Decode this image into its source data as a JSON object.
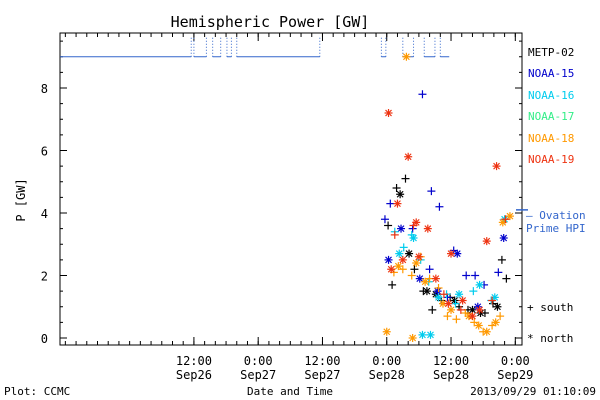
{
  "chart_data": {
    "type": "scatter",
    "title": "Hemispheric Power [GW]",
    "ylabel": "P [GW]",
    "xlabel": "Date and Time",
    "ylim": [
      0,
      9.8
    ],
    "yticks": [
      0,
      2,
      4,
      6,
      8
    ],
    "xlim": [
      "2013-09-25 11:00",
      "2013-09-29 01:15"
    ],
    "xticks": [
      {
        "time": "2013-09-26 12:00",
        "line1": "12:00",
        "line2": "Sep26"
      },
      {
        "time": "2013-09-27 00:00",
        "line1": "0:00",
        "line2": "Sep27"
      },
      {
        "time": "2013-09-27 12:00",
        "line1": "12:00",
        "line2": "Sep27"
      },
      {
        "time": "2013-09-28 00:00",
        "line1": "0:00",
        "line2": "Sep28"
      },
      {
        "time": "2013-09-28 12:00",
        "line1": "12:00",
        "line2": "Sep28"
      },
      {
        "time": "2013-09-29 00:00",
        "line1": "0:00",
        "line2": "Sep29"
      }
    ],
    "legend_position": "right",
    "colors": {
      "METP-02": "#000000",
      "NOAA-15": "#0000cc",
      "NOAA-16": "#00ccee",
      "NOAA-17": "#33ee88",
      "NOAA-18": "#ff9900",
      "NOAA-19": "#ee3311",
      "ovation": "#3366cc"
    },
    "series": [
      {
        "name": "METP-02",
        "points": [
          {
            "t": "2013-09-28 00:15",
            "p": 3.6,
            "m": "+"
          },
          {
            "t": "2013-09-28 01:50",
            "p": 4.8,
            "m": "+"
          },
          {
            "t": "2013-09-28 03:30",
            "p": 5.1,
            "m": "+"
          },
          {
            "t": "2013-09-28 01:00",
            "p": 1.7,
            "m": "+"
          },
          {
            "t": "2013-09-28 05:10",
            "p": 2.2,
            "m": "+"
          },
          {
            "t": "2013-09-28 06:50",
            "p": 1.5,
            "m": "+"
          },
          {
            "t": "2013-09-28 08:30",
            "p": 0.9,
            "m": "+"
          },
          {
            "t": "2013-09-28 10:10",
            "p": 1.2,
            "m": "+"
          },
          {
            "t": "2013-09-28 11:50",
            "p": 1.3,
            "m": "+"
          },
          {
            "t": "2013-09-28 13:30",
            "p": 1.0,
            "m": "+"
          },
          {
            "t": "2013-09-28 15:10",
            "p": 0.9,
            "m": "+"
          },
          {
            "t": "2013-09-28 18:20",
            "p": 0.8,
            "m": "+"
          },
          {
            "t": "2013-09-28 19:50",
            "p": 1.1,
            "m": "+"
          },
          {
            "t": "2013-09-28 21:30",
            "p": 2.5,
            "m": "+"
          },
          {
            "t": "2013-09-28 22:20",
            "p": 1.9,
            "m": "+"
          },
          {
            "t": "2013-09-28 02:30",
            "p": 4.6,
            "m": "*"
          },
          {
            "t": "2013-09-28 04:10",
            "p": 2.7,
            "m": "*"
          },
          {
            "t": "2013-09-28 07:30",
            "p": 1.5,
            "m": "*"
          },
          {
            "t": "2013-09-28 09:10",
            "p": 1.4,
            "m": "*"
          },
          {
            "t": "2013-09-28 12:40",
            "p": 1.2,
            "m": "*"
          },
          {
            "t": "2013-09-28 16:00",
            "p": 0.9,
            "m": "*"
          },
          {
            "t": "2013-09-28 17:30",
            "p": 0.8,
            "m": "*"
          },
          {
            "t": "2013-09-28 20:40",
            "p": 1.0,
            "m": "*"
          }
        ]
      },
      {
        "name": "NOAA-15",
        "points": [
          {
            "t": "2013-09-27 23:40",
            "p": 3.8,
            "m": "+"
          },
          {
            "t": "2013-09-28 00:40",
            "p": 4.3,
            "m": "+"
          },
          {
            "t": "2013-09-28 06:40",
            "p": 7.8,
            "m": "+"
          },
          {
            "t": "2013-09-28 08:20",
            "p": 4.7,
            "m": "+"
          },
          {
            "t": "2013-09-28 09:50",
            "p": 4.2,
            "m": "+"
          },
          {
            "t": "2013-09-28 04:50",
            "p": 3.5,
            "m": "+"
          },
          {
            "t": "2013-09-28 08:00",
            "p": 2.2,
            "m": "+"
          },
          {
            "t": "2013-09-28 11:20",
            "p": 1.3,
            "m": "+"
          },
          {
            "t": "2013-09-28 12:30",
            "p": 2.8,
            "m": "+"
          },
          {
            "t": "2013-09-28 14:50",
            "p": 2.0,
            "m": "+"
          },
          {
            "t": "2013-09-28 16:30",
            "p": 2.0,
            "m": "+"
          },
          {
            "t": "2013-09-28 18:10",
            "p": 1.7,
            "m": "+"
          },
          {
            "t": "2013-09-28 20:50",
            "p": 2.1,
            "m": "+"
          },
          {
            "t": "2013-09-28 21:50",
            "p": 3.2,
            "m": "*"
          },
          {
            "t": "2013-09-28 00:20",
            "p": 2.5,
            "m": "*"
          },
          {
            "t": "2013-09-28 02:40",
            "p": 3.5,
            "m": "*"
          },
          {
            "t": "2013-09-28 06:10",
            "p": 1.9,
            "m": "*"
          },
          {
            "t": "2013-09-28 09:30",
            "p": 1.5,
            "m": "*"
          },
          {
            "t": "2013-09-28 13:10",
            "p": 2.7,
            "m": "*"
          },
          {
            "t": "2013-09-28 17:00",
            "p": 1.0,
            "m": "*"
          }
        ]
      },
      {
        "name": "NOAA-16",
        "points": [
          {
            "t": "2013-09-28 01:30",
            "p": 3.4,
            "m": "+"
          },
          {
            "t": "2013-09-28 03:10",
            "p": 2.9,
            "m": "+"
          },
          {
            "t": "2013-09-28 04:40",
            "p": 3.3,
            "m": "+"
          },
          {
            "t": "2013-09-28 06:20",
            "p": 2.5,
            "m": "+"
          },
          {
            "t": "2013-09-28 07:50",
            "p": 1.8,
            "m": "+"
          },
          {
            "t": "2013-09-28 11:10",
            "p": 1.4,
            "m": "+"
          },
          {
            "t": "2013-09-28 12:50",
            "p": 1.1,
            "m": "+"
          },
          {
            "t": "2013-09-28 16:10",
            "p": 1.5,
            "m": "+"
          },
          {
            "t": "2013-09-28 19:30",
            "p": 1.2,
            "m": "+"
          },
          {
            "t": "2013-09-28 02:20",
            "p": 2.7,
            "m": "*"
          },
          {
            "t": "2013-09-28 05:00",
            "p": 3.2,
            "m": "*"
          },
          {
            "t": "2013-09-28 06:40",
            "p": 0.1,
            "m": "*"
          },
          {
            "t": "2013-09-28 08:10",
            "p": 0.1,
            "m": "*"
          },
          {
            "t": "2013-09-28 09:40",
            "p": 1.3,
            "m": "*"
          },
          {
            "t": "2013-09-28 13:30",
            "p": 1.4,
            "m": "*"
          },
          {
            "t": "2013-09-28 17:20",
            "p": 1.7,
            "m": "*"
          },
          {
            "t": "2013-09-28 20:10",
            "p": 1.3,
            "m": "*"
          },
          {
            "t": "2013-09-28 22:00",
            "p": 3.8,
            "m": "*"
          }
        ]
      },
      {
        "name": "NOAA-17",
        "points": []
      },
      {
        "name": "NOAA-18",
        "points": [
          {
            "t": "2013-09-28 03:40",
            "p": 9.0,
            "m": "*"
          },
          {
            "t": "2013-09-28 00:00",
            "p": 0.2,
            "m": "*"
          },
          {
            "t": "2013-09-28 04:50",
            "p": 0.0,
            "m": "*"
          },
          {
            "t": "2013-09-28 01:20",
            "p": 2.1,
            "m": "+"
          },
          {
            "t": "2013-09-28 03:00",
            "p": 2.2,
            "m": "+"
          },
          {
            "t": "2013-09-28 04:40",
            "p": 2.0,
            "m": "+"
          },
          {
            "t": "2013-09-28 06:20",
            "p": 2.6,
            "m": "+"
          },
          {
            "t": "2013-09-28 08:00",
            "p": 1.9,
            "m": "+"
          },
          {
            "t": "2013-09-28 09:40",
            "p": 1.6,
            "m": "+"
          },
          {
            "t": "2013-09-28 11:20",
            "p": 0.7,
            "m": "+"
          },
          {
            "t": "2013-09-28 13:00",
            "p": 0.6,
            "m": "+"
          },
          {
            "t": "2013-09-28 14:40",
            "p": 0.8,
            "m": "+"
          },
          {
            "t": "2013-09-28 16:20",
            "p": 0.5,
            "m": "+"
          },
          {
            "t": "2013-09-28 18:00",
            "p": 0.2,
            "m": "+"
          },
          {
            "t": "2013-09-28 19:40",
            "p": 0.4,
            "m": "+"
          },
          {
            "t": "2013-09-28 21:10",
            "p": 0.7,
            "m": "+"
          },
          {
            "t": "2013-09-28 02:10",
            "p": 2.3,
            "m": "*"
          },
          {
            "t": "2013-09-28 05:30",
            "p": 2.4,
            "m": "*"
          },
          {
            "t": "2013-09-28 07:10",
            "p": 1.8,
            "m": "*"
          },
          {
            "t": "2013-09-28 10:30",
            "p": 1.1,
            "m": "*"
          },
          {
            "t": "2013-09-28 12:00",
            "p": 0.9,
            "m": "*"
          },
          {
            "t": "2013-09-28 15:20",
            "p": 0.7,
            "m": "*"
          },
          {
            "t": "2013-09-28 17:10",
            "p": 0.4,
            "m": "*"
          },
          {
            "t": "2013-09-28 18:40",
            "p": 0.2,
            "m": "*"
          },
          {
            "t": "2013-09-28 20:20",
            "p": 0.5,
            "m": "*"
          },
          {
            "t": "2013-09-28 21:40",
            "p": 3.7,
            "m": "*"
          },
          {
            "t": "2013-09-28 23:00",
            "p": 3.9,
            "m": "*"
          }
        ]
      },
      {
        "name": "NOAA-19",
        "points": [
          {
            "t": "2013-09-28 00:20",
            "p": 7.2,
            "m": "*"
          },
          {
            "t": "2013-09-28 04:00",
            "p": 5.8,
            "m": "*"
          },
          {
            "t": "2013-09-28 02:00",
            "p": 4.3,
            "m": "*"
          },
          {
            "t": "2013-09-28 05:30",
            "p": 3.7,
            "m": "*"
          },
          {
            "t": "2013-09-28 07:40",
            "p": 3.5,
            "m": "*"
          },
          {
            "t": "2013-09-28 12:00",
            "p": 2.7,
            "m": "*"
          },
          {
            "t": "2013-09-28 18:40",
            "p": 3.1,
            "m": "*"
          },
          {
            "t": "2013-09-28 20:30",
            "p": 5.5,
            "m": "*"
          },
          {
            "t": "2013-09-28 22:10",
            "p": 3.8,
            "m": "+"
          },
          {
            "t": "2013-09-28 00:50",
            "p": 2.2,
            "m": "*"
          },
          {
            "t": "2013-09-28 03:00",
            "p": 2.5,
            "m": "*"
          },
          {
            "t": "2013-09-28 06:00",
            "p": 2.6,
            "m": "*"
          },
          {
            "t": "2013-09-28 09:10",
            "p": 1.9,
            "m": "*"
          },
          {
            "t": "2013-09-28 11:30",
            "p": 1.1,
            "m": "*"
          },
          {
            "t": "2013-09-28 14:10",
            "p": 1.2,
            "m": "*"
          },
          {
            "t": "2013-09-28 16:00",
            "p": 0.7,
            "m": "*"
          },
          {
            "t": "2013-09-28 17:20",
            "p": 0.9,
            "m": "*"
          },
          {
            "t": "2013-09-28 01:30",
            "p": 3.3,
            "m": "+"
          },
          {
            "t": "2013-09-28 05:00",
            "p": 3.6,
            "m": "+"
          },
          {
            "t": "2013-09-28 10:40",
            "p": 1.4,
            "m": "+"
          },
          {
            "t": "2013-09-28 13:50",
            "p": 0.9,
            "m": "+"
          },
          {
            "t": "2013-09-28 19:40",
            "p": 1.2,
            "m": "+"
          }
        ]
      }
    ],
    "satellite_coverage": {
      "value": 9.0,
      "segments": [
        [
          "2013-09-25 11:00",
          "2013-09-26 11:30"
        ],
        [
          "2013-09-26 12:00",
          "2013-09-26 14:20"
        ],
        [
          "2013-09-26 15:30",
          "2013-09-26 17:00"
        ],
        [
          "2013-09-26 18:10",
          "2013-09-26 19:00"
        ],
        [
          "2013-09-26 20:00",
          "2013-09-27 11:30"
        ],
        [
          "2013-09-27 23:00",
          "2013-09-27 23:50"
        ],
        [
          "2013-09-28 03:00",
          "2013-09-28 05:00"
        ],
        [
          "2013-09-28 07:00",
          "2013-09-28 09:00"
        ],
        [
          "2013-09-28 10:00",
          "2013-09-28 11:40"
        ]
      ]
    },
    "ovation_prime_hpi": {
      "value": 4.1,
      "label_line1": "— Ovation",
      "label_line2": "Prime HPI"
    },
    "marker_legend": {
      "south": "+ south",
      "north": "* north"
    }
  },
  "footer": {
    "left": "Plot: CCMC",
    "center": "Date and Time",
    "right": "2013/09/29 01:10:09"
  }
}
